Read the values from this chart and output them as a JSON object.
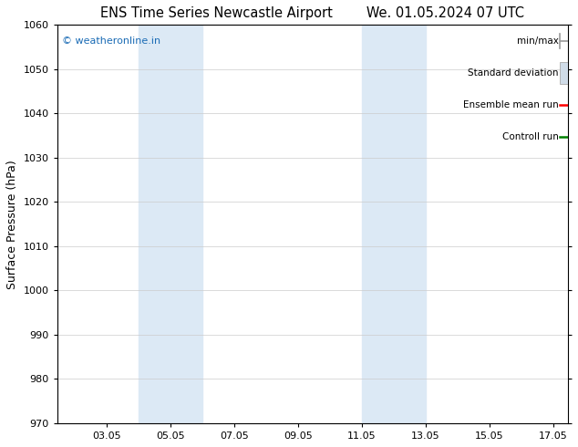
{
  "title_left": "ENS Time Series Newcastle Airport",
  "title_right": "We. 01.05.2024 07 UTC",
  "ylabel": "Surface Pressure (hPa)",
  "xlim": [
    1.5,
    17.5
  ],
  "ylim": [
    970,
    1060
  ],
  "yticks": [
    970,
    980,
    990,
    1000,
    1010,
    1020,
    1030,
    1040,
    1050,
    1060
  ],
  "xtick_labels": [
    "03.05",
    "05.05",
    "07.05",
    "09.05",
    "11.05",
    "13.05",
    "15.05",
    "17.05"
  ],
  "xtick_positions": [
    3.05,
    5.05,
    7.05,
    9.05,
    11.05,
    13.05,
    15.05,
    17.05
  ],
  "shaded_regions": [
    {
      "xmin": 4.05,
      "xmax": 6.05,
      "color": "#dce9f5"
    },
    {
      "xmin": 11.05,
      "xmax": 13.05,
      "color": "#dce9f5"
    }
  ],
  "copyright_text": "© weatheronline.in",
  "copyright_color": "#1a6bb5",
  "legend_items": [
    {
      "label": "min/max",
      "color": "#b0b0b0",
      "style": "minmax"
    },
    {
      "label": "Standard deviation",
      "color": "#d0dce8",
      "style": "stddev"
    },
    {
      "label": "Ensemble mean run",
      "color": "#ff0000",
      "style": "line"
    },
    {
      "label": "Controll run",
      "color": "#008000",
      "style": "line"
    }
  ],
  "bg_color": "#ffffff",
  "border_color": "#000000",
  "grid_color": "#cccccc",
  "title_fontsize": 10.5,
  "ylabel_fontsize": 9,
  "tick_fontsize": 8,
  "legend_fontsize": 7.5,
  "copyright_fontsize": 8
}
